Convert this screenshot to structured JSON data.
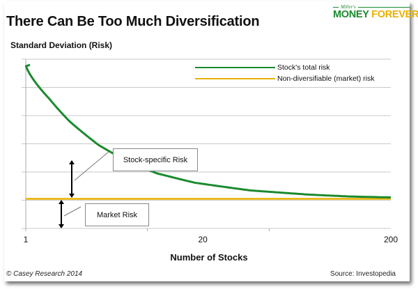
{
  "header": {
    "title": "There Can Be Too Much Diversification",
    "logo_small": "Miller's",
    "logo_word1": "MONEY",
    "logo_word2": "FOREVER"
  },
  "footer": {
    "credit": "© Casey Research 2014",
    "source": "Source: Investopedia"
  },
  "colors": {
    "total_risk": "#1a8a2e",
    "market_risk": "#e8b000",
    "grid": "#c8c8c8"
  },
  "chart_data": {
    "type": "line",
    "title": "There Can Be Too Much Diversification",
    "ylabel": "Standard Deviation (Risk)",
    "xlabel": "Number of Stocks",
    "x_scale": "index-like (1 to 200)",
    "x_ticks": [
      "1",
      "20",
      "200"
    ],
    "xlim": [
      1,
      200
    ],
    "ylim": [
      0,
      6
    ],
    "y_tick_labels": [],
    "grid": true,
    "legend_position": "top-right",
    "series": [
      {
        "name": "Stock's total risk",
        "x": [
          1,
          2,
          3,
          5,
          8,
          12,
          20,
          40,
          80,
          130,
          200
        ],
        "values": [
          5.8,
          4.6,
          3.8,
          2.95,
          2.35,
          1.95,
          1.62,
          1.35,
          1.2,
          1.13,
          1.1
        ]
      },
      {
        "name": "Non-diversifiable (market) risk",
        "x": [
          1,
          200
        ],
        "values": [
          1.05,
          1.05
        ]
      }
    ],
    "annotations": [
      {
        "label": "Stock-specific Risk"
      },
      {
        "label": "Market Risk"
      }
    ]
  }
}
